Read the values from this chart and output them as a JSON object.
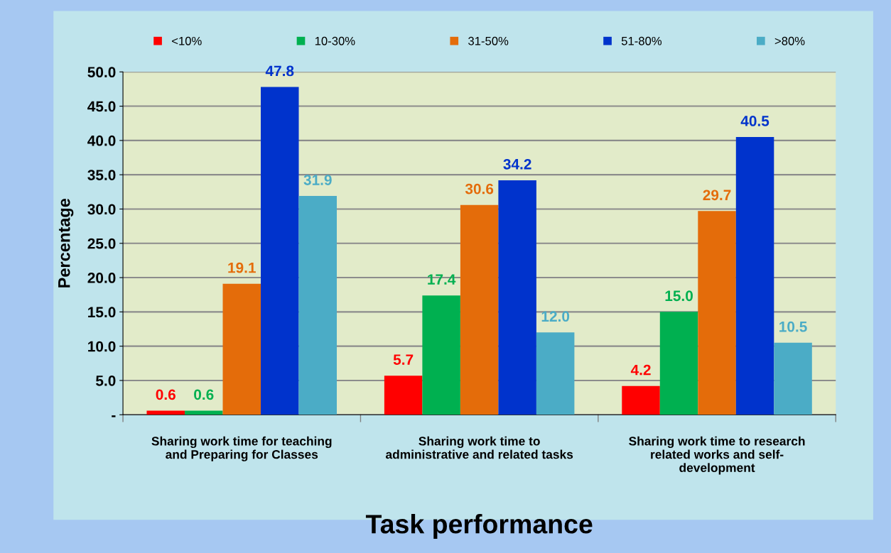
{
  "chart_data": {
    "type": "bar",
    "xlabel": "Task performance",
    "ylabel": "Percentage",
    "categories": [
      "Sharing work time for teaching\nand Preparing for Classes",
      "Sharing work time to\nadministrative and related tasks",
      "Sharing work time to research\nrelated works and self-\ndevelopment"
    ],
    "series": [
      {
        "name": "<10%",
        "color": "#ff0000",
        "values": [
          0.6,
          5.7,
          4.2
        ],
        "value_labels": [
          "0.6",
          "5.7",
          "4.2"
        ]
      },
      {
        "name": "10-30%",
        "color": "#00b050",
        "values": [
          0.6,
          17.4,
          15.0
        ],
        "value_labels": [
          "0.6",
          "17.4",
          "15.0"
        ]
      },
      {
        "name": "31-50%",
        "color": "#e46c0a",
        "values": [
          19.1,
          30.6,
          29.7
        ],
        "value_labels": [
          "19.1",
          "30.6",
          "29.7"
        ]
      },
      {
        "name": "51-80%",
        "color": "#0033cc",
        "values": [
          47.8,
          34.2,
          40.5
        ],
        "value_labels": [
          "47.8",
          "34.2",
          "40.5"
        ]
      },
      {
        "name": ">80%",
        "color": "#4bacc6",
        "values": [
          31.9,
          12.0,
          10.5
        ],
        "value_labels": [
          "31.9",
          "12.0",
          "10.5"
        ]
      }
    ],
    "ylim": [
      0,
      50
    ],
    "yticks": [
      {
        "value": 0,
        "label": "-"
      },
      {
        "value": 5,
        "label": "5.0"
      },
      {
        "value": 10,
        "label": "10.0"
      },
      {
        "value": 15,
        "label": "15.0"
      },
      {
        "value": 20,
        "label": "20.0"
      },
      {
        "value": 25,
        "label": "25.0"
      },
      {
        "value": 30,
        "label": "30.0"
      },
      {
        "value": 35,
        "label": "35.0"
      },
      {
        "value": 40,
        "label": "40.0"
      },
      {
        "value": 45,
        "label": "45.0"
      },
      {
        "value": 50,
        "label": "50.0"
      }
    ],
    "grid": "y",
    "legend": "top"
  }
}
